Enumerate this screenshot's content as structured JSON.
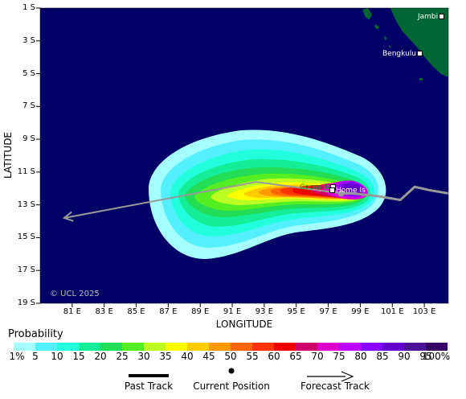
{
  "axes": {
    "y_title": "LATITUDE",
    "x_title": "LONGITUDE",
    "y_ticks": [
      "1 S",
      "3 S",
      "5 S",
      "7 S",
      "9 S",
      "11 S",
      "13 S",
      "15 S",
      "17 S",
      "19 S"
    ],
    "x_ticks": [
      "81 E",
      "83 E",
      "85 E",
      "87 E",
      "89 E",
      "91 E",
      "93 E",
      "95 E",
      "97 E",
      "99 E",
      "101 E",
      "103 E"
    ]
  },
  "places": {
    "jambi": "Jambi",
    "bengkulu": "Bengkulu",
    "cocos": "Cocos Is",
    "home": "Home Is"
  },
  "copyright": "© UCL 2025",
  "legend": {
    "title": "Probability",
    "ticks": [
      "1%",
      "5",
      "10",
      "15",
      "20",
      "25",
      "30",
      "35",
      "40",
      "45",
      "50",
      "55",
      "60",
      "65",
      "70",
      "75",
      "80",
      "85",
      "90",
      "95",
      "100%"
    ],
    "colors": [
      "#a6ffff",
      "#55f0ff",
      "#22ffdd",
      "#14ee99",
      "#22dd55",
      "#55ee22",
      "#bbff22",
      "#ffff00",
      "#ffcc00",
      "#ff9900",
      "#ff6600",
      "#ff3300",
      "#ee0000",
      "#cc0066",
      "#dd00cc",
      "#bb00ff",
      "#8800ff",
      "#6600cc",
      "#4c1199",
      "#330066"
    ],
    "past_track": "Past Track",
    "current_position": "Current Position",
    "forecast_track": "Forecast Track"
  },
  "colors": {
    "ocean": "#000066",
    "land": "#006633",
    "track": "#999999"
  },
  "chart_data": {
    "type": "map",
    "xlim": [
      79,
      104.5
    ],
    "ylim": [
      -19,
      -1
    ],
    "current_position": [
      97.8,
      -12.3
    ],
    "past_track": [
      [
        104.5,
        -12.3
      ],
      [
        103.3,
        -12.1
      ],
      [
        102.4,
        -11.9
      ],
      [
        101.5,
        -12.7
      ],
      [
        100.3,
        -12.5
      ],
      [
        99.5,
        -12.4
      ],
      [
        98.5,
        -12.3
      ],
      [
        97.8,
        -12.3
      ]
    ],
    "forecast_track": [
      [
        97.8,
        -12.3
      ],
      [
        92.5,
        -11.6
      ],
      [
        80.5,
        -13.8
      ]
    ]
  }
}
